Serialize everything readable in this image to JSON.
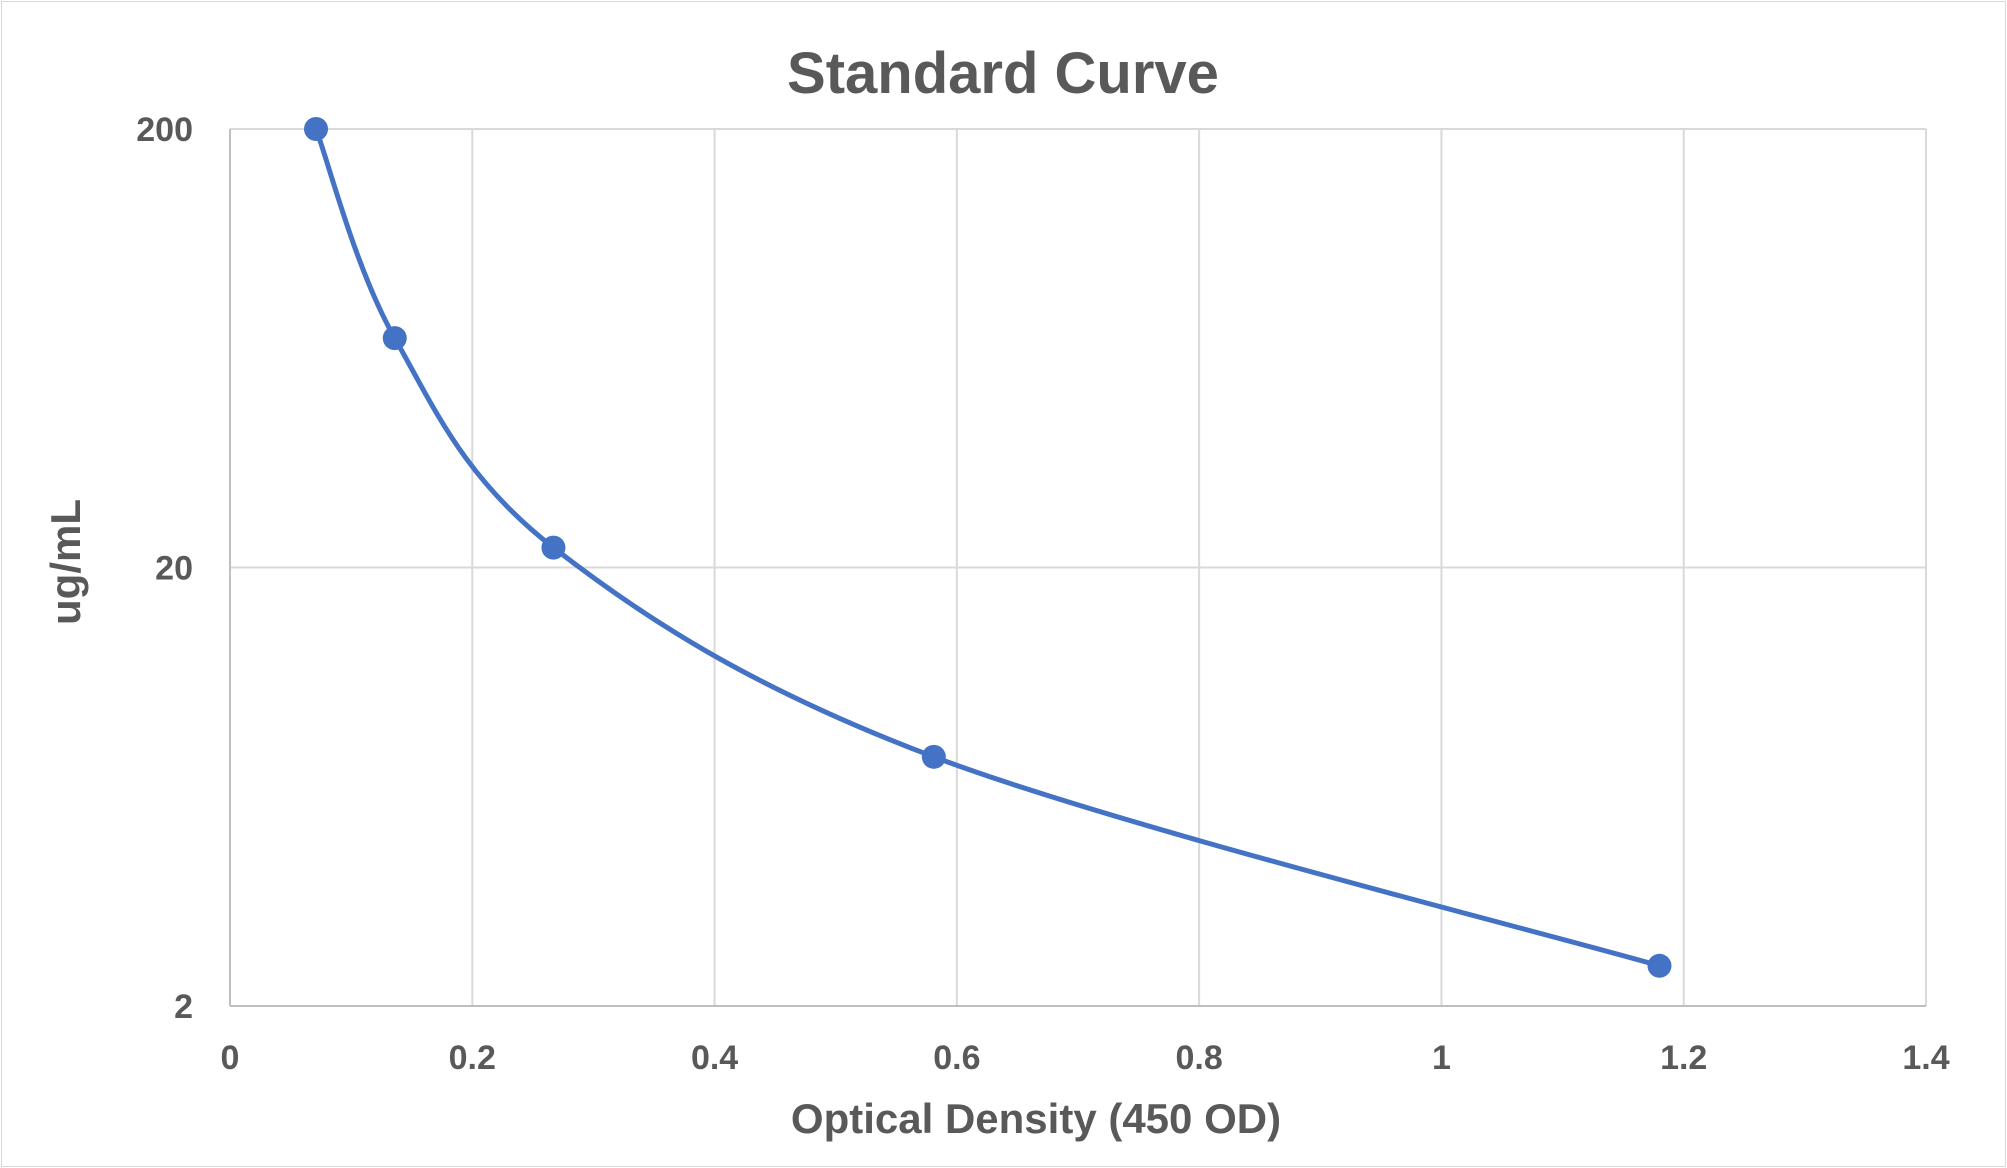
{
  "chart_data": {
    "type": "scatter",
    "title": "Standard Curve",
    "xlabel": "Optical Density (450 OD)",
    "ylabel": "ug/mL",
    "xlim": [
      0,
      1.4
    ],
    "ylim": [
      2,
      200
    ],
    "yscale": "log",
    "xticks": [
      "0",
      "0.2",
      "0.4",
      "0.6",
      "0.8",
      "1",
      "1.2",
      "1.4"
    ],
    "yticks": [
      "2",
      "20",
      "200"
    ],
    "grid": true,
    "legend": "none",
    "smooth_line": true,
    "series": [
      {
        "color": "#4472c4",
        "x": [
          0.071,
          0.136,
          0.267,
          0.581,
          1.18
        ],
        "y": [
          200,
          66.7,
          22.2,
          7.4,
          2.47
        ]
      }
    ]
  }
}
